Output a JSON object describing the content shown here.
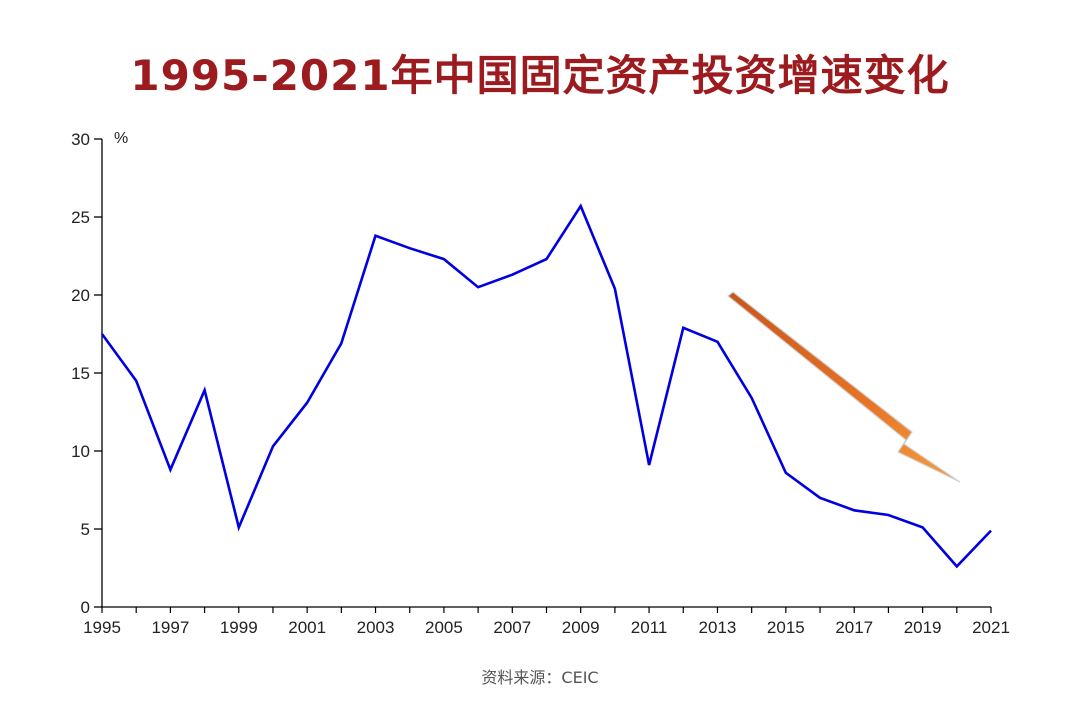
{
  "title": "1995-2021年中国固定资产投资增速变化",
  "source": "资料来源：CEIC",
  "chart_data": {
    "type": "line",
    "title": "1995-2021年中国固定资产投资增速变化",
    "unit": "%",
    "x": [
      1995,
      1996,
      1997,
      1998,
      1999,
      2000,
      2001,
      2002,
      2003,
      2004,
      2005,
      2006,
      2007,
      2008,
      2009,
      2010,
      2011,
      2012,
      2013,
      2014,
      2015,
      2016,
      2017,
      2018,
      2019,
      2020,
      2021
    ],
    "x_ticks": [
      "1995",
      "1997",
      "1999",
      "2001",
      "2003",
      "2005",
      "2007",
      "2009",
      "2011",
      "2013",
      "2015",
      "2017",
      "2019",
      "2021"
    ],
    "y_ticks": [
      "0",
      "5",
      "10",
      "15",
      "20",
      "25",
      "30"
    ],
    "ylim": [
      0,
      30
    ],
    "series": [
      {
        "values": [
          17.5,
          14.5,
          8.8,
          13.9,
          5.1,
          10.3,
          13.1,
          16.9,
          23.8,
          23.0,
          22.3,
          20.5,
          21.3,
          22.3,
          25.7,
          20.4,
          9.1,
          17.9,
          17.0,
          13.4,
          8.6,
          7.0,
          6.2,
          5.9,
          5.1,
          2.6,
          4.9
        ],
        "color": "#0000e0"
      }
    ],
    "trend_arrow_color": "#e06a1a",
    "grid": false
  }
}
